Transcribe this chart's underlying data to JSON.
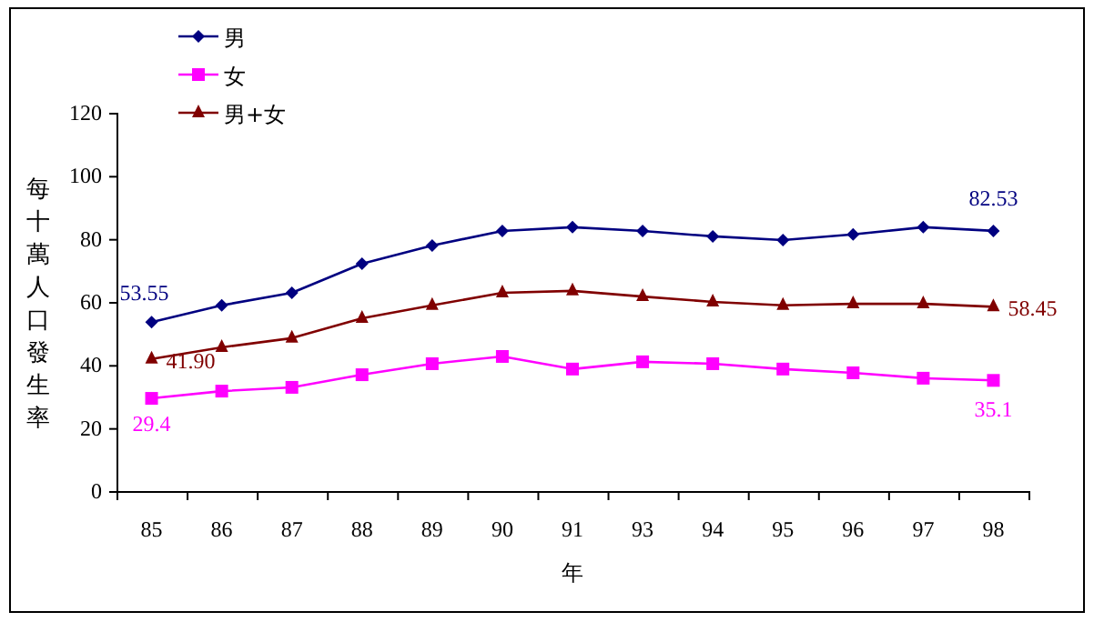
{
  "chart_data": {
    "type": "line",
    "xlabel": "年",
    "ylabel": "每十萬人口發生率",
    "categories": [
      "85",
      "86",
      "87",
      "88",
      "89",
      "90",
      "91",
      "93",
      "94",
      "95",
      "96",
      "97",
      "98"
    ],
    "ylim": [
      0,
      120
    ],
    "yticks": [
      0,
      20,
      40,
      60,
      80,
      100,
      120
    ],
    "grid": false,
    "legend": "top left",
    "line_style": "solid",
    "series": [
      {
        "name": "男",
        "color": "#000080",
        "marker": "diamond",
        "values": [
          53.55,
          58.9,
          62.9,
          72.1,
          77.9,
          82.5,
          83.7,
          82.5,
          80.8,
          79.6,
          81.4,
          83.7,
          82.53
        ],
        "value_labels": [
          "53.55",
          null,
          null,
          null,
          null,
          null,
          null,
          null,
          null,
          null,
          null,
          null,
          "82.53"
        ]
      },
      {
        "name": "女",
        "color": "#ff00ff",
        "marker": "square",
        "values": [
          29.4,
          31.7,
          32.9,
          36.9,
          40.4,
          42.7,
          38.7,
          41.0,
          40.4,
          38.7,
          37.5,
          35.8,
          35.1
        ],
        "value_labels": [
          "29.4",
          null,
          null,
          null,
          null,
          null,
          null,
          null,
          null,
          null,
          null,
          null,
          "35.1"
        ]
      },
      {
        "name": "男+女",
        "color": "#800000",
        "marker": "triangle",
        "values": [
          41.9,
          45.6,
          48.5,
          54.8,
          58.9,
          62.9,
          63.5,
          61.7,
          60.0,
          58.9,
          59.4,
          59.4,
          58.45
        ],
        "value_labels": [
          "41.90",
          null,
          null,
          null,
          null,
          null,
          null,
          null,
          null,
          null,
          null,
          null,
          "58.45"
        ]
      }
    ]
  }
}
